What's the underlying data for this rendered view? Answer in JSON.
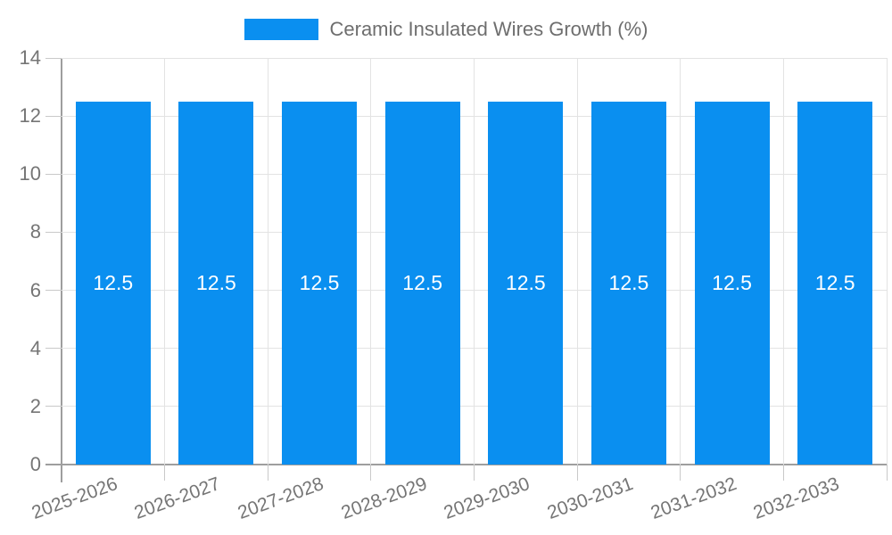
{
  "window": {
    "background_color": "#ffffff"
  },
  "legend": {
    "position": "top-center",
    "swatch_color": "#0a8ff0",
    "label": "Ceramic Insulated Wires Growth (%)"
  },
  "chart_data": {
    "type": "bar",
    "title": "Ceramic Insulated Wires Growth (%)",
    "categories": [
      "2025-2026",
      "2026-2027",
      "2027-2028",
      "2028-2029",
      "2029-2030",
      "2030-2031",
      "2031-2032",
      "2032-2033"
    ],
    "series": [
      {
        "name": "Ceramic Insulated Wires Growth (%)",
        "values": [
          12.5,
          12.5,
          12.5,
          12.5,
          12.5,
          12.5,
          12.5,
          12.5
        ]
      }
    ],
    "bar_labels": [
      "12.5",
      "12.5",
      "12.5",
      "12.5",
      "12.5",
      "12.5",
      "12.5",
      "12.5"
    ],
    "xlabel": "",
    "ylabel": "",
    "ylim": [
      0,
      14
    ],
    "yticks": [
      0,
      2,
      4,
      6,
      8,
      10,
      12,
      14
    ],
    "grid": true,
    "legend_position": "top",
    "xlabel_rotation_deg": -20,
    "colors": {
      "bar": "#0a8ff0",
      "bar_label": "#ffffff",
      "gridline": "#e3e3e3",
      "axis_line": "#9e9e9e",
      "tick": "#c9c9c9",
      "axis_text": "#757575",
      "legend_text": "#6e6e6e"
    }
  }
}
